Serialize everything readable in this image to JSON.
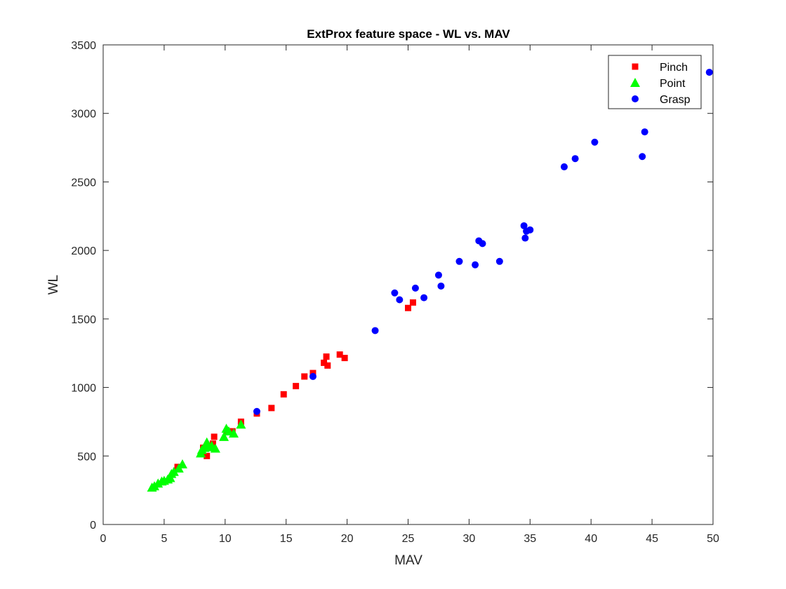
{
  "chart_data": {
    "type": "scatter",
    "title": "ExtProx feature space - WL vs. MAV",
    "xlabel": "MAV",
    "ylabel": "WL",
    "xlim": [
      0,
      50
    ],
    "ylim": [
      0,
      3500
    ],
    "xticks": [
      0,
      5,
      10,
      15,
      20,
      25,
      30,
      35,
      40,
      45,
      50
    ],
    "yticks": [
      0,
      500,
      1000,
      1500,
      2000,
      2500,
      3000,
      3500
    ],
    "grid": false,
    "legend_position": "top-right",
    "series": [
      {
        "name": "Pinch",
        "marker": "square",
        "color": "#ff0000",
        "points": [
          [
            6.1,
            420
          ],
          [
            8.2,
            560
          ],
          [
            8.5,
            500
          ],
          [
            9.0,
            590
          ],
          [
            9.1,
            640
          ],
          [
            10.2,
            680
          ],
          [
            10.6,
            680
          ],
          [
            11.3,
            750
          ],
          [
            12.6,
            810
          ],
          [
            13.8,
            850
          ],
          [
            14.8,
            950
          ],
          [
            15.8,
            1010
          ],
          [
            16.5,
            1080
          ],
          [
            17.2,
            1105
          ],
          [
            18.1,
            1180
          ],
          [
            18.3,
            1225
          ],
          [
            18.4,
            1160
          ],
          [
            19.4,
            1240
          ],
          [
            19.8,
            1215
          ],
          [
            25.0,
            1580
          ],
          [
            25.4,
            1620
          ]
        ]
      },
      {
        "name": "Point",
        "marker": "triangle",
        "color": "#00ff00",
        "points": [
          [
            4.0,
            270
          ],
          [
            4.2,
            280
          ],
          [
            4.5,
            300
          ],
          [
            4.8,
            315
          ],
          [
            5.0,
            320
          ],
          [
            5.3,
            330
          ],
          [
            5.5,
            340
          ],
          [
            5.6,
            370
          ],
          [
            5.8,
            385
          ],
          [
            6.2,
            410
          ],
          [
            6.5,
            440
          ],
          [
            8.0,
            520
          ],
          [
            8.1,
            545
          ],
          [
            8.3,
            560
          ],
          [
            8.4,
            580
          ],
          [
            8.5,
            600
          ],
          [
            8.7,
            565
          ],
          [
            8.9,
            575
          ],
          [
            9.2,
            555
          ],
          [
            9.9,
            640
          ],
          [
            10.1,
            700
          ],
          [
            10.3,
            680
          ],
          [
            10.7,
            665
          ],
          [
            11.3,
            730
          ]
        ]
      },
      {
        "name": "Grasp",
        "marker": "circle",
        "color": "#0000ff",
        "points": [
          [
            12.6,
            825
          ],
          [
            17.2,
            1080
          ],
          [
            22.3,
            1415
          ],
          [
            23.9,
            1690
          ],
          [
            24.3,
            1640
          ],
          [
            25.6,
            1725
          ],
          [
            26.3,
            1655
          ],
          [
            27.5,
            1820
          ],
          [
            27.7,
            1740
          ],
          [
            29.2,
            1920
          ],
          [
            30.5,
            1895
          ],
          [
            30.8,
            2070
          ],
          [
            31.1,
            2050
          ],
          [
            32.5,
            1920
          ],
          [
            34.5,
            2180
          ],
          [
            34.6,
            2090
          ],
          [
            34.7,
            2140
          ],
          [
            35.0,
            2150
          ],
          [
            37.8,
            2610
          ],
          [
            38.7,
            2670
          ],
          [
            40.3,
            2790
          ],
          [
            44.2,
            2685
          ],
          [
            44.4,
            2865
          ],
          [
            49.7,
            3300
          ]
        ]
      }
    ]
  }
}
